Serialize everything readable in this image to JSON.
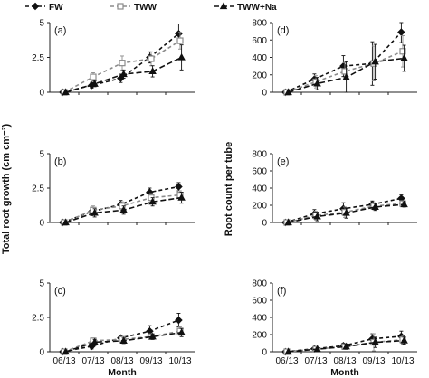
{
  "legend": [
    {
      "name": "FW",
      "marker": "diamond",
      "color": "#111111",
      "fill": "#111111",
      "dash": "4,3"
    },
    {
      "name": "TWW",
      "marker": "square",
      "color": "#8c8c8c",
      "fill": "#ffffff",
      "dash": "4,3"
    },
    {
      "name": "TWW+Na",
      "marker": "triangle",
      "color": "#111111",
      "fill": "#111111",
      "dash": "6,3"
    }
  ],
  "shared_ylabels": {
    "left": "Total root growth (cm cm⁻²)",
    "right": "Root count per tube"
  },
  "chart_data": [
    {
      "type": "line",
      "panel_label": "(a)",
      "categories": [
        "06/13",
        "07/13",
        "08/13",
        "09/13",
        "10/13"
      ],
      "xlabel": "",
      "ylim": [
        0,
        5
      ],
      "yticks": [
        0,
        2.5,
        5
      ],
      "ytick_labels": [
        "0",
        "2.5",
        "5"
      ],
      "show_xtick_labels": false,
      "series": [
        {
          "name": "FW",
          "values": [
            0,
            0.5,
            1.0,
            2.5,
            4.2
          ],
          "err": [
            0.05,
            0.2,
            0.3,
            0.4,
            0.7
          ]
        },
        {
          "name": "TWW",
          "values": [
            0,
            1.1,
            2.1,
            2.4,
            3.7
          ],
          "err": [
            0.05,
            0.3,
            0.5,
            0.5,
            0.6
          ]
        },
        {
          "name": "TWW+Na",
          "values": [
            0,
            0.6,
            1.3,
            1.5,
            2.5
          ],
          "err": [
            0.05,
            0.2,
            0.3,
            0.4,
            0.9
          ]
        }
      ]
    },
    {
      "type": "line",
      "panel_label": "(d)",
      "categories": [
        "06/13",
        "07/13",
        "08/13",
        "09/13",
        "10/13"
      ],
      "xlabel": "",
      "ylim": [
        0,
        800
      ],
      "yticks": [
        0,
        200,
        400,
        600,
        800
      ],
      "ytick_labels": [
        "0",
        "200",
        "400",
        "600",
        "800"
      ],
      "show_xtick_labels": false,
      "series": [
        {
          "name": "FW",
          "values": [
            0,
            150,
            300,
            330,
            690
          ],
          "err": [
            10,
            60,
            120,
            250,
            120
          ]
        },
        {
          "name": "TWW",
          "values": [
            0,
            120,
            240,
            330,
            470
          ],
          "err": [
            10,
            70,
            100,
            200,
            180
          ]
        },
        {
          "name": "TWW+Na",
          "values": [
            0,
            100,
            170,
            350,
            390
          ],
          "err": [
            10,
            70,
            180,
            200,
            150
          ]
        }
      ]
    },
    {
      "type": "line",
      "panel_label": "(b)",
      "categories": [
        "06/13",
        "07/13",
        "08/13",
        "09/13",
        "10/13"
      ],
      "xlabel": "",
      "ylim": [
        0,
        5
      ],
      "yticks": [
        0,
        2.5,
        5
      ],
      "ytick_labels": [
        "0",
        "2.5",
        "5"
      ],
      "show_xtick_labels": false,
      "series": [
        {
          "name": "FW",
          "values": [
            0,
            0.8,
            1.3,
            2.2,
            2.6
          ],
          "err": [
            0.05,
            0.3,
            0.3,
            0.3,
            0.3
          ]
        },
        {
          "name": "TWW",
          "values": [
            0,
            0.9,
            1.2,
            1.8,
            2.0
          ],
          "err": [
            0.05,
            0.3,
            0.3,
            0.3,
            0.3
          ]
        },
        {
          "name": "TWW+Na",
          "values": [
            0,
            0.7,
            0.9,
            1.5,
            1.8
          ],
          "err": [
            0.05,
            0.3,
            0.3,
            0.3,
            0.4
          ]
        }
      ]
    },
    {
      "type": "line",
      "panel_label": "(e)",
      "categories": [
        "06/13",
        "07/13",
        "08/13",
        "09/13",
        "10/13"
      ],
      "xlabel": "",
      "ylim": [
        0,
        800
      ],
      "yticks": [
        0,
        200,
        400,
        600,
        800
      ],
      "ytick_labels": [
        "0",
        "200",
        "400",
        "600",
        "800"
      ],
      "show_xtick_labels": false,
      "series": [
        {
          "name": "FW",
          "values": [
            0,
            100,
            160,
            210,
            280
          ],
          "err": [
            10,
            50,
            70,
            40,
            40
          ]
        },
        {
          "name": "TWW",
          "values": [
            0,
            80,
            120,
            190,
            220
          ],
          "err": [
            10,
            50,
            60,
            40,
            30
          ]
        },
        {
          "name": "TWW+Na",
          "values": [
            0,
            70,
            110,
            180,
            210
          ],
          "err": [
            10,
            50,
            60,
            40,
            30
          ]
        }
      ]
    },
    {
      "type": "line",
      "panel_label": "(c)",
      "categories": [
        "06/13",
        "07/13",
        "08/13",
        "09/13",
        "10/13"
      ],
      "xlabel": "Month",
      "ylim": [
        0,
        5
      ],
      "yticks": [
        0,
        2.5,
        5
      ],
      "ytick_labels": [
        "0",
        "2.5",
        "5"
      ],
      "show_xtick_labels": true,
      "series": [
        {
          "name": "FW",
          "values": [
            0,
            0.4,
            1.0,
            1.5,
            2.3
          ],
          "err": [
            0.05,
            0.2,
            0.2,
            0.4,
            0.5
          ]
        },
        {
          "name": "TWW",
          "values": [
            0,
            0.8,
            0.9,
            1.1,
            1.5
          ],
          "err": [
            0.05,
            0.2,
            0.2,
            0.2,
            0.3
          ]
        },
        {
          "name": "TWW+Na",
          "values": [
            0,
            0.7,
            0.8,
            1.1,
            1.4
          ],
          "err": [
            0.05,
            0.2,
            0.2,
            0.2,
            0.3
          ]
        }
      ]
    },
    {
      "type": "line",
      "panel_label": "(f)",
      "categories": [
        "06/13",
        "07/13",
        "08/13",
        "09/13",
        "10/13"
      ],
      "xlabel": "Month",
      "ylim": [
        0,
        800
      ],
      "yticks": [
        0,
        200,
        400,
        600,
        800
      ],
      "ytick_labels": [
        "0",
        "200",
        "400",
        "600",
        "800"
      ],
      "show_xtick_labels": true,
      "series": [
        {
          "name": "FW",
          "values": [
            0,
            35,
            70,
            150,
            180
          ],
          "err": [
            5,
            15,
            30,
            60,
            60
          ]
        },
        {
          "name": "TWW",
          "values": [
            0,
            30,
            60,
            110,
            140
          ],
          "err": [
            5,
            15,
            30,
            100,
            50
          ]
        },
        {
          "name": "TWW+Na",
          "values": [
            0,
            30,
            60,
            110,
            130
          ],
          "err": [
            5,
            15,
            30,
            60,
            40
          ]
        }
      ]
    }
  ]
}
